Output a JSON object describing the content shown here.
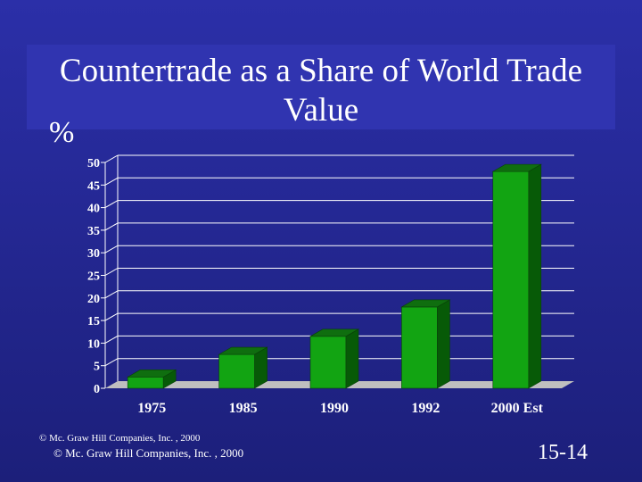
{
  "slide": {
    "title": "Countertrade as a Share of World Trade Value",
    "unit_label": "%",
    "copyright_small": "© Mc. Graw Hill Companies, Inc. , 2000",
    "copyright": "© Mc. Graw Hill Companies, Inc. , 2000",
    "slide_number": "15-14"
  },
  "colors": {
    "background": "#1c1f7a",
    "bar_front": "#12a412",
    "bar_top": "#0f6e0f",
    "bar_side": "#075a07",
    "grid": "#ffffff",
    "floor": "#bfbfbf"
  },
  "chart_data": {
    "type": "bar",
    "categories": [
      "1975",
      "1985",
      "1990",
      "1992",
      "2000 Est"
    ],
    "values": [
      2.5,
      7.5,
      11.5,
      18,
      48
    ],
    "title": "Countertrade as a Share of World Trade Value",
    "xlabel": "",
    "ylabel": "%",
    "ylim": [
      0,
      50
    ],
    "yticks": [
      "0",
      "5",
      "10",
      "15",
      "20",
      "25",
      "30",
      "35",
      "40",
      "45",
      "50"
    ],
    "grid": true,
    "legend": "none",
    "style": "3d"
  }
}
